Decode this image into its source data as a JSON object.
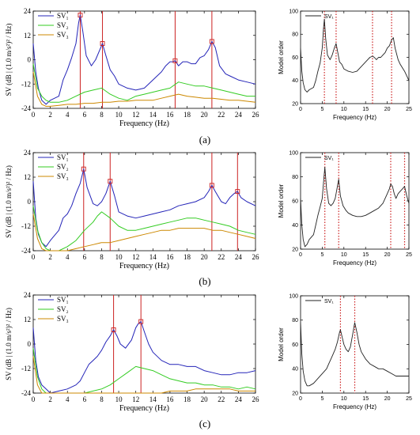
{
  "figure": {
    "panel_labels": [
      "(a)",
      "(b)",
      "(c)"
    ]
  },
  "chart_data": [
    {
      "id": "a-left",
      "type": "line",
      "xlabel": "Frequency (Hz)",
      "ylabel": "SV (dB | (1.0 m/s²)² / Hz)",
      "xlim": [
        0,
        26
      ],
      "ylim": [
        -24,
        24
      ],
      "xticks": [
        0,
        2,
        4,
        6,
        8,
        10,
        12,
        14,
        16,
        18,
        20,
        22,
        24,
        26
      ],
      "yticks": [
        -24,
        -12,
        0,
        12,
        24
      ],
      "legend": [
        "SV₁",
        "SV₂",
        "SV₃"
      ],
      "legend_position": "top-left",
      "peak_lines_hz": [
        5.5,
        8.1,
        16.6,
        20.9
      ],
      "series": [
        {
          "name": "SV₁",
          "color": "#2424b8",
          "x": [
            0,
            0.3,
            0.6,
            1,
            1.5,
            2,
            3,
            3.5,
            4,
            4.5,
            5,
            5.3,
            5.5,
            5.8,
            6.2,
            6.8,
            7.3,
            7.8,
            8.1,
            8.5,
            9,
            9.5,
            10,
            11,
            12,
            13,
            14,
            15,
            15.5,
            16,
            16.3,
            16.6,
            17,
            17.5,
            18,
            18.5,
            19,
            19.5,
            20,
            20.5,
            20.9,
            21.3,
            21.8,
            22.5,
            23,
            24,
            25,
            26
          ],
          "y": [
            8,
            -6,
            -14,
            -20,
            -22,
            -20,
            -18,
            -10,
            -5,
            1,
            8,
            18,
            22,
            14,
            2,
            -3,
            0,
            5,
            8,
            2,
            -5,
            -8,
            -12,
            -14,
            -15,
            -14,
            -10,
            -6,
            -3,
            -1,
            -1,
            -0.5,
            -3,
            -1,
            -1,
            -2,
            -2,
            1,
            2,
            5,
            9,
            6,
            -3,
            -7,
            -8,
            -10,
            -11,
            -12
          ]
        },
        {
          "name": "SV₂",
          "color": "#33cc22",
          "x": [
            0,
            0.5,
            1,
            1.5,
            2,
            3,
            4,
            5,
            6,
            7,
            8,
            9,
            10,
            11,
            12,
            13,
            14,
            15,
            16,
            17,
            18,
            19,
            20,
            21,
            22,
            23,
            24,
            25,
            26
          ],
          "y": [
            -2,
            -14,
            -18,
            -20,
            -21,
            -21,
            -20,
            -18,
            -16,
            -15,
            -14,
            -17,
            -19,
            -20,
            -18,
            -17,
            -16,
            -15,
            -14,
            -11,
            -12,
            -13,
            -13,
            -14,
            -15,
            -16,
            -17,
            -18,
            -18
          ]
        },
        {
          "name": "SV₃",
          "color": "#cc8800",
          "x": [
            0,
            0.5,
            1,
            1.5,
            2,
            3,
            4,
            5,
            6,
            7,
            8,
            9,
            10,
            11,
            12,
            13,
            14,
            15,
            16,
            17,
            18,
            19,
            20,
            21,
            22,
            23,
            24,
            25,
            26
          ],
          "y": [
            -6,
            -18,
            -22,
            -23,
            -23,
            -22.5,
            -22,
            -22,
            -21.5,
            -21.5,
            -21,
            -21,
            -20.5,
            -20.5,
            -20,
            -20,
            -20,
            -19,
            -18,
            -17,
            -18,
            -18.5,
            -19,
            -19,
            -19.5,
            -20,
            -20,
            -20.5,
            -21
          ]
        }
      ]
    },
    {
      "id": "a-right",
      "type": "line",
      "xlabel": "Frequency (Hz)",
      "ylabel": "Model order",
      "xlim": [
        0,
        25
      ],
      "ylim": [
        20,
        100
      ],
      "xticks": [
        0,
        5,
        10,
        15,
        20,
        25
      ],
      "yticks": [
        20,
        40,
        60,
        80,
        100
      ],
      "legend": [
        "SV₁"
      ],
      "legend_position": "top-left",
      "stable_pole_lines_hz": [
        5.5,
        8.2,
        16.6,
        21.0
      ],
      "series": [
        {
          "name": "SV₁",
          "color": "#222222",
          "x": [
            0,
            0.3,
            0.6,
            1,
            1.5,
            2,
            3,
            3.5,
            4,
            4.5,
            5,
            5.3,
            5.5,
            5.8,
            6.2,
            6.8,
            7.3,
            7.8,
            8.2,
            8.6,
            9,
            9.5,
            10,
            11,
            12,
            13,
            14,
            15,
            15.5,
            16,
            16.6,
            17,
            17.5,
            18,
            18.5,
            19,
            19.5,
            20,
            20.5,
            21,
            21.4,
            21.8,
            22.5,
            23,
            24,
            25
          ],
          "y": [
            68,
            48,
            38,
            32,
            30,
            32,
            34,
            40,
            48,
            55,
            68,
            85,
            93,
            76,
            62,
            58,
            62,
            68,
            72,
            64,
            56,
            54,
            50,
            48,
            47,
            48,
            52,
            56,
            58,
            60,
            61,
            60,
            58,
            60,
            60,
            62,
            64,
            68,
            70,
            75,
            77,
            68,
            58,
            54,
            48,
            40
          ]
        }
      ]
    },
    {
      "id": "b-left",
      "type": "line",
      "xlabel": "Frequency (Hz)",
      "ylabel": "SV (dB | (1.0 m/s²)² / Hz)",
      "xlim": [
        0,
        26
      ],
      "ylim": [
        -24,
        24
      ],
      "xticks": [
        0,
        2,
        4,
        6,
        8,
        10,
        12,
        14,
        16,
        18,
        20,
        22,
        24,
        26
      ],
      "yticks": [
        -24,
        -12,
        0,
        12,
        24
      ],
      "legend": [
        "SV₁",
        "SV₂",
        "SV₃"
      ],
      "legend_position": "top-left",
      "peak_lines_hz": [
        5.9,
        9.0,
        20.9,
        23.9
      ],
      "series": [
        {
          "name": "SV₁",
          "color": "#2424b8",
          "x": [
            0,
            0.3,
            0.6,
            1,
            1.5,
            2,
            3,
            3.5,
            4,
            4.5,
            5,
            5.5,
            5.9,
            6.3,
            7,
            7.5,
            8,
            8.5,
            9,
            9.5,
            10,
            11,
            12,
            13,
            14,
            15,
            16,
            17,
            18,
            19,
            20,
            20.5,
            20.9,
            21.3,
            22,
            22.5,
            23,
            23.5,
            23.9,
            24.3,
            25,
            26
          ],
          "y": [
            10,
            -8,
            -16,
            -20,
            -22,
            -19,
            -14,
            -8,
            -6,
            -2,
            4,
            9,
            16,
            7,
            -1,
            -2,
            0,
            4,
            10,
            3,
            -5,
            -7,
            -8,
            -7,
            -6,
            -5,
            -4,
            -2,
            -1,
            0,
            2,
            5,
            8,
            5,
            0,
            -1,
            2,
            4,
            5,
            2,
            0,
            -2
          ]
        },
        {
          "name": "SV₂",
          "color": "#33cc22",
          "x": [
            0,
            0.5,
            1,
            1.5,
            2,
            3,
            4,
            5,
            6,
            7,
            7.5,
            8,
            9,
            10,
            11,
            12,
            13,
            14,
            15,
            16,
            17,
            18,
            19,
            20,
            21,
            22,
            23,
            24,
            25,
            26
          ],
          "y": [
            -2,
            -14,
            -20,
            -23,
            -24,
            -24,
            -22,
            -19,
            -14,
            -10,
            -7,
            -5,
            -8,
            -12,
            -14,
            -14,
            -13,
            -12,
            -11,
            -10,
            -9,
            -8,
            -8,
            -9,
            -10,
            -11,
            -12,
            -14,
            -15,
            -16
          ]
        },
        {
          "name": "SV₃",
          "color": "#cc8800",
          "x": [
            0,
            0.5,
            1,
            1.5,
            2,
            3,
            4,
            5,
            6,
            7,
            8,
            9,
            10,
            11,
            12,
            13,
            14,
            15,
            16,
            17,
            18,
            19,
            20,
            21,
            22,
            23,
            24,
            25,
            26
          ],
          "y": [
            -6,
            -18,
            -23,
            -24,
            -24,
            -24,
            -24,
            -23,
            -22,
            -21,
            -20,
            -20,
            -19,
            -18,
            -17,
            -16,
            -15,
            -14,
            -14,
            -13,
            -13,
            -13,
            -13,
            -14,
            -14,
            -15,
            -16,
            -17,
            -18
          ]
        }
      ]
    },
    {
      "id": "b-right",
      "type": "line",
      "xlabel": "Frequency (Hz)",
      "ylabel": "Model order",
      "xlim": [
        0,
        25
      ],
      "ylim": [
        20,
        100
      ],
      "xticks": [
        0,
        5,
        10,
        15,
        20,
        25
      ],
      "yticks": [
        20,
        40,
        60,
        80,
        100
      ],
      "legend": [
        "SV₁"
      ],
      "legend_position": "top-left",
      "stable_pole_lines_hz": [
        5.6,
        8.8,
        20.8,
        24.0
      ],
      "series": [
        {
          "name": "SV₁",
          "color": "#222222",
          "x": [
            0,
            0.3,
            0.6,
            1,
            1.5,
            2,
            3,
            3.5,
            4,
            4.5,
            5,
            5.3,
            5.6,
            6,
            6.5,
            7,
            7.5,
            8,
            8.4,
            8.8,
            9.2,
            9.8,
            10.5,
            11,
            12,
            13,
            14,
            15,
            16,
            17,
            18,
            19,
            19.5,
            20,
            20.5,
            20.8,
            21.2,
            21.6,
            22,
            22.5,
            23,
            23.5,
            24,
            24.5,
            25
          ],
          "y": [
            62,
            40,
            28,
            22,
            24,
            28,
            32,
            40,
            48,
            55,
            62,
            75,
            88,
            70,
            58,
            56,
            58,
            62,
            70,
            78,
            64,
            56,
            52,
            50,
            48,
            47,
            47,
            48,
            50,
            52,
            54,
            58,
            62,
            66,
            70,
            74,
            72,
            66,
            62,
            66,
            68,
            70,
            72,
            64,
            58
          ]
        }
      ]
    },
    {
      "id": "c-left",
      "type": "line",
      "xlabel": "Frequency (Hz)",
      "ylabel": "SV (dB | (1.0 m/s²)² / Hz)",
      "xlim": [
        0,
        26
      ],
      "ylim": [
        -24,
        24
      ],
      "xticks": [
        0,
        2,
        4,
        6,
        8,
        10,
        12,
        14,
        16,
        18,
        20,
        22,
        24,
        26
      ],
      "yticks": [
        -24,
        -12,
        0,
        12,
        24
      ],
      "legend": [
        "SV₁",
        "SV₂",
        "SV₃"
      ],
      "legend_position": "top-left",
      "peak_lines_hz": [
        9.4,
        12.6
      ],
      "series": [
        {
          "name": "SV₁",
          "color": "#2424b8",
          "x": [
            0,
            0.3,
            0.6,
            1,
            1.5,
            2,
            3,
            4,
            5,
            5.5,
            6,
            6.5,
            7,
            7.5,
            8,
            8.5,
            9,
            9.4,
            9.8,
            10.2,
            10.8,
            11.5,
            12,
            12.3,
            12.6,
            13,
            13.5,
            14,
            15,
            16,
            17,
            18,
            19,
            20,
            21,
            22,
            23,
            24,
            25,
            26
          ],
          "y": [
            8,
            -8,
            -16,
            -20,
            -22,
            -24,
            -23,
            -22,
            -20,
            -18,
            -14,
            -10,
            -8,
            -6,
            -3,
            1,
            4,
            7,
            4,
            0,
            -2,
            2,
            8,
            10,
            11,
            6,
            0,
            -4,
            -8,
            -10,
            -10,
            -11,
            -11,
            -13,
            -14,
            -15,
            -15,
            -14,
            -14,
            -13
          ]
        },
        {
          "name": "SV₂",
          "color": "#33cc22",
          "x": [
            0,
            0.5,
            1,
            1.5,
            2,
            4,
            6,
            8,
            9,
            10,
            11,
            12,
            13,
            14,
            15,
            16,
            17,
            18,
            19,
            20,
            21,
            22,
            23,
            24,
            25,
            26
          ],
          "y": [
            -2,
            -16,
            -22,
            -24,
            -24,
            -24,
            -24,
            -22,
            -20,
            -17,
            -14,
            -11,
            -12,
            -13,
            -15,
            -17,
            -18,
            -19,
            -19,
            -20,
            -20,
            -21,
            -21,
            -22,
            -21,
            -22
          ]
        },
        {
          "name": "SV₃",
          "color": "#cc8800",
          "x": [
            0,
            0.5,
            1,
            1.5,
            2,
            4,
            6,
            8,
            10,
            12,
            13,
            14,
            15,
            16,
            17,
            18,
            19,
            20,
            21,
            22,
            23,
            24,
            25,
            26
          ],
          "y": [
            -6,
            -20,
            -24,
            -24,
            -24,
            -24,
            -24,
            -24,
            -24,
            -24,
            -24,
            -24,
            -24,
            -23,
            -23,
            -23,
            -22,
            -22,
            -22,
            -22,
            -22,
            -23,
            -23,
            -23
          ]
        }
      ]
    },
    {
      "id": "c-right",
      "type": "line",
      "xlabel": "Frequency (Hz)",
      "ylabel": "Model order",
      "xlim": [
        0,
        25
      ],
      "ylim": [
        20,
        100
      ],
      "xticks": [
        0,
        5,
        10,
        15,
        20,
        25
      ],
      "yticks": [
        20,
        40,
        60,
        80,
        100
      ],
      "legend": [
        "SV₁"
      ],
      "legend_position": "top-left",
      "stable_pole_lines_hz": [
        9.2,
        12.5
      ],
      "series": [
        {
          "name": "SV₁",
          "color": "#222222",
          "x": [
            0,
            0.3,
            0.6,
            1,
            1.5,
            2,
            3,
            4,
            5,
            6,
            6.5,
            7,
            7.5,
            8,
            8.5,
            9,
            9.2,
            9.6,
            10,
            10.5,
            11,
            11.5,
            12,
            12.5,
            13,
            13.5,
            14,
            15,
            16,
            17,
            18,
            19,
            20,
            21,
            22,
            23,
            24,
            25
          ],
          "y": [
            78,
            52,
            38,
            30,
            26,
            26,
            28,
            32,
            36,
            40,
            44,
            48,
            52,
            56,
            62,
            70,
            72,
            66,
            60,
            56,
            54,
            58,
            68,
            78,
            70,
            60,
            54,
            48,
            44,
            42,
            40,
            40,
            38,
            36,
            34,
            34,
            34,
            34
          ]
        }
      ]
    }
  ]
}
